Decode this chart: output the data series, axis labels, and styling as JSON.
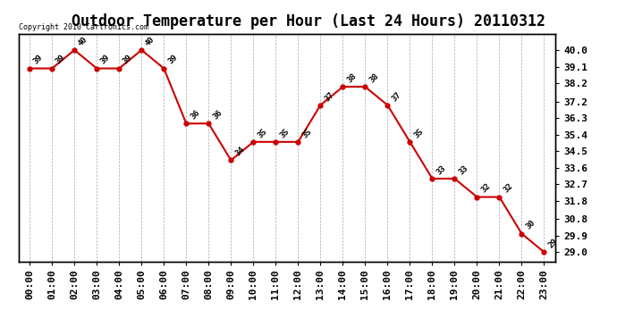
{
  "title": "Outdoor Temperature per Hour (Last 24 Hours) 20110312",
  "copyright_text": "Copyright 2010 Cartronics.com",
  "hours": [
    "00:00",
    "01:00",
    "02:00",
    "03:00",
    "04:00",
    "05:00",
    "06:00",
    "07:00",
    "08:00",
    "09:00",
    "10:00",
    "11:00",
    "12:00",
    "13:00",
    "14:00",
    "15:00",
    "16:00",
    "17:00",
    "18:00",
    "19:00",
    "20:00",
    "21:00",
    "22:00",
    "23:00"
  ],
  "temps": [
    39,
    39,
    40,
    39,
    39,
    40,
    39,
    36,
    36,
    34,
    35,
    35,
    35,
    37,
    38,
    38,
    37,
    35,
    33,
    33,
    32,
    32,
    30,
    29
  ],
  "line_color": "#cc0000",
  "marker_color": "#cc0000",
  "bg_color": "#ffffff",
  "grid_color": "#aaaaaa",
  "yticks_right": [
    29.0,
    29.9,
    30.8,
    31.8,
    32.7,
    33.6,
    34.5,
    35.4,
    36.3,
    37.2,
    38.2,
    39.1,
    40.0
  ],
  "ymin": 28.5,
  "ymax": 40.9,
  "label_fontsize": 8,
  "title_fontsize": 12,
  "copyright_fontsize": 6
}
